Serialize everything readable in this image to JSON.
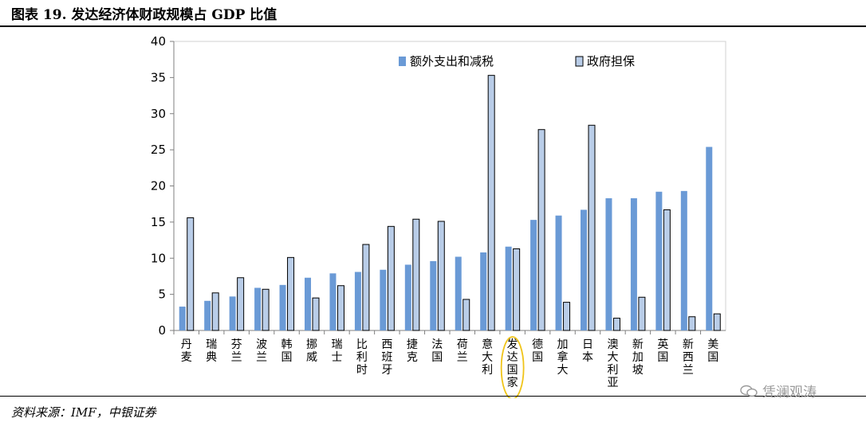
{
  "header": {
    "title": "图表 19. 发达经济体财政规模占 GDP 比值"
  },
  "footer": {
    "source": "资料来源：IMF，中银证券",
    "watermark": "凭澜观涛",
    "watermark_icon": "wechat-icon"
  },
  "colors": {
    "series1": "#6a9ad6",
    "series2": "#b9cde8",
    "series2_stroke": "#000000",
    "highlight": "#f0c419",
    "axis": "#7f7f7f"
  },
  "chart_data": {
    "type": "bar",
    "title": "",
    "xlabel": "",
    "ylabel": "",
    "ylim": [
      0,
      40
    ],
    "yticks": [
      0,
      5,
      10,
      15,
      20,
      25,
      30,
      35,
      40
    ],
    "grid": false,
    "legend_position": "top",
    "highlighted_category": "发达国家",
    "categories": [
      "丹麦",
      "瑞典",
      "芬兰",
      "波兰",
      "韩国",
      "挪威",
      "瑞士",
      "比利时",
      "西班牙",
      "捷克",
      "法国",
      "荷兰",
      "意大利",
      "发达国家",
      "德国",
      "加拿大",
      "日本",
      "澳大利亚",
      "新加坡",
      "英国",
      "新西兰",
      "美国"
    ],
    "series": [
      {
        "name": "额外支出和减税",
        "values": [
          3.3,
          4.1,
          4.7,
          5.9,
          6.3,
          7.3,
          7.9,
          8.1,
          8.4,
          9.1,
          9.6,
          10.2,
          10.8,
          11.6,
          15.3,
          15.9,
          16.7,
          18.3,
          18.3,
          19.2,
          19.3,
          25.4
        ]
      },
      {
        "name": "政府担保",
        "values": [
          15.6,
          5.2,
          7.3,
          5.7,
          10.1,
          4.5,
          6.2,
          11.9,
          14.4,
          15.4,
          15.1,
          4.3,
          35.3,
          11.3,
          27.8,
          3.9,
          28.4,
          1.7,
          4.6,
          16.7,
          1.9,
          2.3
        ]
      }
    ]
  }
}
